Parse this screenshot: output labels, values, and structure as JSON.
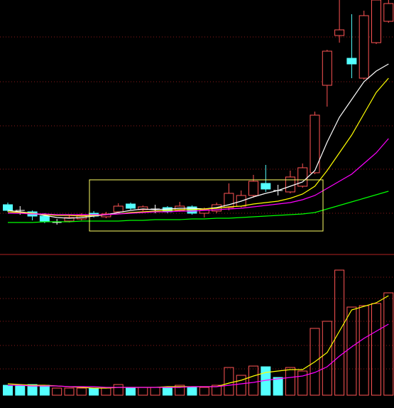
{
  "chart_data": {
    "type": "candlestick",
    "ylim": [
      0,
      355
    ],
    "candles": {
      "open": [
        67,
        59,
        57,
        51,
        42,
        44,
        47,
        55,
        50,
        57,
        68,
        60,
        61,
        63,
        59,
        64,
        55,
        58,
        63,
        65,
        80,
        97,
        87,
        85,
        93,
        112,
        235,
        305,
        273,
        245,
        295,
        325
      ],
      "close": [
        59,
        59,
        51,
        44,
        42,
        49,
        52,
        51,
        54,
        65,
        62,
        64,
        61,
        57,
        65,
        55,
        60,
        67,
        83,
        80,
        100,
        89,
        87,
        106,
        119,
        193,
        283,
        313,
        265,
        333,
        355,
        350
      ],
      "high": [
        70,
        65,
        59,
        55,
        47,
        52,
        55,
        58,
        57,
        69,
        70,
        66,
        67,
        65,
        71,
        66,
        63,
        70,
        97,
        87,
        109,
        123,
        95,
        115,
        125,
        198,
        285,
        355,
        335,
        340,
        355,
        355
      ],
      "low": [
        57,
        53,
        45,
        41,
        39,
        42,
        45,
        49,
        48,
        55,
        60,
        58,
        55,
        55,
        57,
        53,
        49,
        55,
        59,
        63,
        77,
        85,
        80,
        83,
        91,
        110,
        205,
        295,
        245,
        243,
        293,
        323
      ]
    },
    "ma_lines": [
      {
        "color": "#ffffff",
        "values": [
          59,
          57,
          55,
          52,
          49,
          48,
          49,
          51,
          53,
          56,
          59,
          61,
          60,
          61,
          62,
          62,
          61,
          63,
          67,
          72,
          78,
          83,
          87,
          93,
          99,
          115,
          155,
          190,
          215,
          240,
          255,
          265
        ]
      },
      {
        "color": "#ffff00",
        "values": [
          57,
          56,
          55,
          53,
          52,
          52,
          51,
          52,
          53,
          54,
          56,
          57,
          58,
          59,
          60,
          60,
          61,
          62,
          64,
          65,
          68,
          70,
          72,
          76,
          82,
          93,
          115,
          140,
          165,
          195,
          225,
          245
        ]
      },
      {
        "color": "#ff00ff",
        "values": [
          55,
          55,
          54,
          54,
          53,
          53,
          53,
          53,
          53,
          54,
          55,
          56,
          57,
          57,
          58,
          58,
          59,
          60,
          61,
          62,
          64,
          66,
          68,
          70,
          74,
          80,
          90,
          100,
          110,
          125,
          140,
          160
        ]
      },
      {
        "color": "#00ff00",
        "values": [
          42,
          42,
          42,
          43,
          43,
          43,
          44,
          44,
          44,
          44,
          45,
          45,
          46,
          46,
          46,
          47,
          47,
          48,
          48,
          49,
          50,
          51,
          52,
          53,
          54,
          56,
          61,
          66,
          71,
          76,
          81,
          86
        ]
      }
    ],
    "volume": {
      "ylim": [
        0,
        196
      ],
      "values": [
        14,
        13,
        15,
        14,
        10,
        10,
        10,
        10,
        10,
        15,
        11,
        11,
        11,
        11,
        14,
        11,
        11,
        14,
        39,
        28,
        41,
        40,
        25,
        39,
        34,
        94,
        104,
        176,
        124,
        126,
        129,
        144
      ],
      "colors": [
        "#54ffff",
        "#54ffff",
        "#54ffff",
        "#54ffff",
        "#ff5454",
        "#ff5454",
        "#ff5454",
        "#54ffff",
        "#ff5454",
        "#ff5454",
        "#54ffff",
        "#ff5454",
        "#ff5454",
        "#54ffff",
        "#ff5454",
        "#54ffff",
        "#ff5454",
        "#ff5454",
        "#ff5454",
        "#ff5454",
        "#ff5454",
        "#54ffff",
        "#54ffff",
        "#ff5454",
        "#ff5454",
        "#ff5454",
        "#ff5454",
        "#ff5454",
        "#ff5454",
        "#ff5454",
        "#ff5454",
        "#ff5454"
      ],
      "ma_lines": [
        {
          "color": "#ffff00",
          "values": [
            16,
            15,
            14,
            14,
            13,
            12,
            11,
            10,
            10,
            11,
            11,
            11,
            11,
            12,
            12,
            12,
            12,
            12,
            17,
            21,
            27,
            32,
            34,
            36,
            36,
            47,
            60,
            90,
            120,
            125,
            130,
            140
          ]
        },
        {
          "color": "#ff00ff",
          "values": [
            14,
            14,
            13,
            13,
            13,
            12,
            12,
            12,
            11,
            11,
            11,
            11,
            11,
            11,
            11,
            12,
            12,
            12,
            14,
            16,
            18,
            21,
            23,
            25,
            27,
            32,
            40,
            55,
            68,
            80,
            90,
            100
          ]
        }
      ]
    }
  }
}
